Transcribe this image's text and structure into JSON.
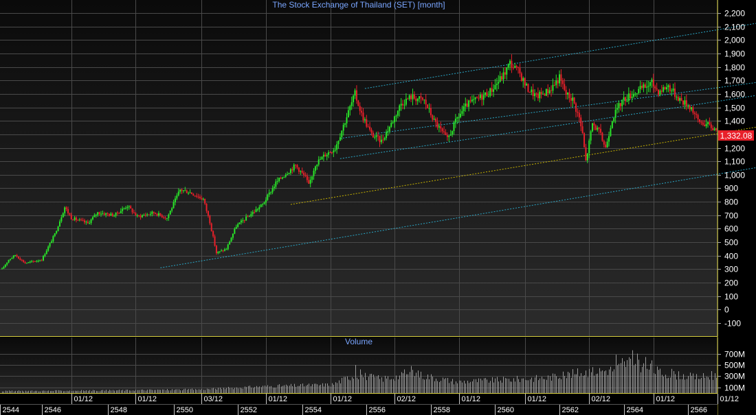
{
  "colors": {
    "background_top": "#0a0a0a",
    "background_bottom": "#2c2c2c",
    "grid": "#4a4a4a",
    "frame": "#d8d040",
    "up": "#29e629",
    "down": "#e8202a",
    "channel": "#2aa8c8",
    "midline": "#c8b400",
    "title": "#7aa6ff",
    "axis_text": "#ffffff",
    "last_badge": "#e8202a",
    "volume": "#9a9a9a"
  },
  "chart_data": [
    {
      "type": "candlestick",
      "title": "The Stock Exchange of Thailand (SET) [month]",
      "ylim": [
        -100,
        2200
      ],
      "yticks": [
        "2,200",
        "2,100",
        "2,000",
        "1,900",
        "1,800",
        "1,700",
        "1,600",
        "1,500",
        "1,400",
        "1,300",
        "1,200",
        "1,100",
        "1,000",
        "900",
        "800",
        "700",
        "600",
        "500",
        "400",
        "300",
        "200",
        "100",
        "0",
        "-100"
      ],
      "last_price": "1,332.08",
      "grid": true,
      "anchors": [
        {
          "t": 0,
          "v": 300
        },
        {
          "t": 4,
          "v": 370
        },
        {
          "t": 8,
          "v": 405
        },
        {
          "t": 14,
          "v": 345
        },
        {
          "t": 24,
          "v": 370
        },
        {
          "t": 32,
          "v": 560
        },
        {
          "t": 38,
          "v": 760
        },
        {
          "t": 42,
          "v": 680
        },
        {
          "t": 52,
          "v": 640
        },
        {
          "t": 58,
          "v": 720
        },
        {
          "t": 68,
          "v": 700
        },
        {
          "t": 76,
          "v": 770
        },
        {
          "t": 82,
          "v": 690
        },
        {
          "t": 92,
          "v": 720
        },
        {
          "t": 100,
          "v": 680
        },
        {
          "t": 108,
          "v": 890
        },
        {
          "t": 114,
          "v": 870
        },
        {
          "t": 122,
          "v": 820
        },
        {
          "t": 126,
          "v": 650
        },
        {
          "t": 130,
          "v": 420
        },
        {
          "t": 136,
          "v": 450
        },
        {
          "t": 142,
          "v": 620
        },
        {
          "t": 150,
          "v": 700
        },
        {
          "t": 158,
          "v": 780
        },
        {
          "t": 166,
          "v": 940
        },
        {
          "t": 172,
          "v": 1010
        },
        {
          "t": 178,
          "v": 1070
        },
        {
          "t": 184,
          "v": 980
        },
        {
          "t": 186,
          "v": 920
        },
        {
          "t": 190,
          "v": 1080
        },
        {
          "t": 196,
          "v": 1150
        },
        {
          "t": 202,
          "v": 1200
        },
        {
          "t": 208,
          "v": 1400
        },
        {
          "t": 214,
          "v": 1600
        },
        {
          "t": 218,
          "v": 1450
        },
        {
          "t": 224,
          "v": 1300
        },
        {
          "t": 230,
          "v": 1250
        },
        {
          "t": 236,
          "v": 1380
        },
        {
          "t": 242,
          "v": 1530
        },
        {
          "t": 248,
          "v": 1580
        },
        {
          "t": 256,
          "v": 1550
        },
        {
          "t": 262,
          "v": 1400
        },
        {
          "t": 266,
          "v": 1330
        },
        {
          "t": 270,
          "v": 1260
        },
        {
          "t": 276,
          "v": 1420
        },
        {
          "t": 282,
          "v": 1520
        },
        {
          "t": 288,
          "v": 1560
        },
        {
          "t": 296,
          "v": 1620
        },
        {
          "t": 304,
          "v": 1740
        },
        {
          "t": 308,
          "v": 1830
        },
        {
          "t": 314,
          "v": 1750
        },
        {
          "t": 318,
          "v": 1650
        },
        {
          "t": 324,
          "v": 1580
        },
        {
          "t": 332,
          "v": 1630
        },
        {
          "t": 338,
          "v": 1720
        },
        {
          "t": 342,
          "v": 1600
        },
        {
          "t": 346,
          "v": 1560
        },
        {
          "t": 350,
          "v": 1420
        },
        {
          "t": 352,
          "v": 1300
        },
        {
          "t": 354,
          "v": 1100
        },
        {
          "t": 358,
          "v": 1380
        },
        {
          "t": 362,
          "v": 1320
        },
        {
          "t": 366,
          "v": 1200
        },
        {
          "t": 370,
          "v": 1420
        },
        {
          "t": 376,
          "v": 1550
        },
        {
          "t": 382,
          "v": 1600
        },
        {
          "t": 388,
          "v": 1640
        },
        {
          "t": 394,
          "v": 1680
        },
        {
          "t": 398,
          "v": 1620
        },
        {
          "t": 404,
          "v": 1660
        },
        {
          "t": 408,
          "v": 1600
        },
        {
          "t": 412,
          "v": 1550
        },
        {
          "t": 418,
          "v": 1500
        },
        {
          "t": 422,
          "v": 1400
        },
        {
          "t": 428,
          "v": 1370
        },
        {
          "t": 433,
          "v": 1332.08
        }
      ],
      "channel_lines": [
        {
          "style": "channel",
          "t1": 96,
          "v1": 310,
          "t2": 485,
          "v2": 1110
        },
        {
          "style": "channel",
          "t1": 205,
          "v1": 1120,
          "t2": 485,
          "v2": 1640
        },
        {
          "style": "channel",
          "t1": 205,
          "v1": 1270,
          "t2": 485,
          "v2": 1730
        },
        {
          "style": "channel",
          "t1": 220,
          "v1": 1640,
          "t2": 485,
          "v2": 2180
        },
        {
          "style": "midline",
          "t1": 175,
          "v1": 780,
          "t2": 485,
          "v2": 1410
        }
      ]
    },
    {
      "type": "bar",
      "title": "Volume",
      "ylim": [
        0,
        950
      ],
      "yticks": [
        "700M",
        "500M",
        "300M",
        "100M"
      ],
      "ytick_values": [
        700,
        500,
        300,
        100
      ],
      "anchors": [
        {
          "t": 0,
          "v": 35
        },
        {
          "t": 60,
          "v": 45
        },
        {
          "t": 120,
          "v": 65
        },
        {
          "t": 160,
          "v": 120
        },
        {
          "t": 200,
          "v": 150
        },
        {
          "t": 214,
          "v": 330
        },
        {
          "t": 230,
          "v": 250
        },
        {
          "t": 250,
          "v": 340
        },
        {
          "t": 275,
          "v": 200
        },
        {
          "t": 300,
          "v": 230
        },
        {
          "t": 330,
          "v": 270
        },
        {
          "t": 350,
          "v": 360
        },
        {
          "t": 372,
          "v": 420
        },
        {
          "t": 380,
          "v": 560
        },
        {
          "t": 388,
          "v": 480
        },
        {
          "t": 400,
          "v": 350
        },
        {
          "t": 420,
          "v": 280
        },
        {
          "t": 433,
          "v": 300
        }
      ],
      "spikes": [
        {
          "t": 214,
          "v": 500
        },
        {
          "t": 217,
          "v": 420
        },
        {
          "t": 244,
          "v": 420
        },
        {
          "t": 248,
          "v": 480
        },
        {
          "t": 252,
          "v": 400
        },
        {
          "t": 340,
          "v": 380
        },
        {
          "t": 356,
          "v": 430
        },
        {
          "t": 372,
          "v": 680
        },
        {
          "t": 376,
          "v": 620
        },
        {
          "t": 382,
          "v": 760
        },
        {
          "t": 385,
          "v": 700
        },
        {
          "t": 390,
          "v": 640
        },
        {
          "t": 394,
          "v": 580
        },
        {
          "t": 406,
          "v": 430
        },
        {
          "t": 430,
          "v": 390
        }
      ]
    }
  ],
  "x_axis": {
    "months_total": 434,
    "upper_labels": [
      "01/12",
      "01/12",
      "03/12",
      "01/12",
      "01/12",
      "02/12",
      "01/12",
      "01/12",
      "02/12",
      "01/12",
      "01/12"
    ],
    "upper_label_months": [
      42,
      81,
      121,
      160,
      199,
      238,
      277,
      317,
      356,
      395,
      434
    ],
    "lower_labels": [
      "2544",
      "2546",
      "2548",
      "2550",
      "2552",
      "2554",
      "2556",
      "2558",
      "2560",
      "2562",
      "2564",
      "2566"
    ],
    "lower_label_months": [
      0,
      24,
      64,
      104,
      143,
      182,
      221,
      260,
      299,
      338,
      377,
      416
    ]
  }
}
